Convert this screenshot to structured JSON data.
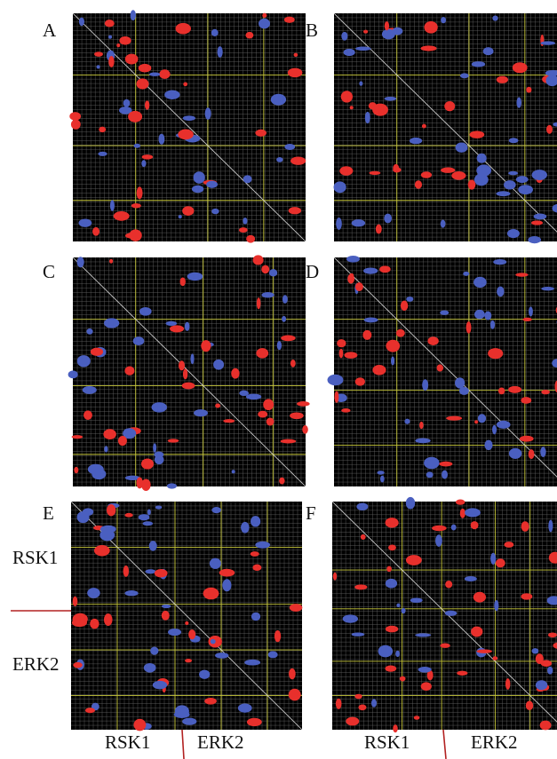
{
  "panels": [
    {
      "label": "A"
    },
    {
      "label": "B"
    },
    {
      "label": "C"
    },
    {
      "label": "D"
    },
    {
      "label": "E"
    },
    {
      "label": "F"
    }
  ],
  "panel_e": {
    "row_labels": [
      "RSK1",
      "ERK2"
    ],
    "column_labels": [
      "RSK1",
      "ERK2"
    ]
  },
  "panel_f": {
    "column_labels": [
      "RSK1",
      "ERK2"
    ]
  }
}
